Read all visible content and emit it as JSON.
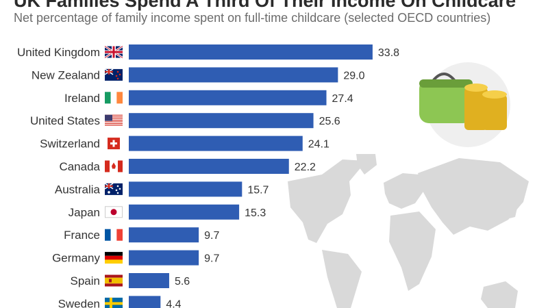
{
  "title": "UK Families Spend A Third Of Their Income On Childcare",
  "subtitle": "Net percentage of family income spent on full-time childcare (selected OECD countries)",
  "colors": {
    "bar": "#2f5db3",
    "map": "#d9d9d9",
    "purse": "#8dc653",
    "coin": "#f2c230"
  },
  "decorations": {
    "purse_icon": "purse-with-coins-icon",
    "map": "world-map-illustration"
  },
  "chart_data": {
    "type": "bar",
    "orientation": "horizontal",
    "categories": [
      "United Kingdom",
      "New Zealand",
      "Ireland",
      "United States",
      "Switzerland",
      "Canada",
      "Australia",
      "Japan",
      "France",
      "Germany",
      "Spain",
      "Sweden"
    ],
    "flags": [
      "gb-flag-icon",
      "nz-flag-icon",
      "ie-flag-icon",
      "us-flag-icon",
      "ch-flag-icon",
      "ca-flag-icon",
      "au-flag-icon",
      "jp-flag-icon",
      "fr-flag-icon",
      "de-flag-icon",
      "es-flag-icon",
      "se-flag-icon"
    ],
    "values": [
      33.8,
      29.0,
      27.4,
      25.6,
      24.1,
      22.2,
      15.7,
      15.3,
      9.7,
      9.7,
      5.6,
      4.4
    ],
    "value_labels": [
      "33.8",
      "29.0",
      "27.4",
      "25.6",
      "24.1",
      "22.2",
      "15.7",
      "15.3",
      "9.7",
      "9.7",
      "5.6",
      "4.4"
    ],
    "xlim": [
      0,
      34
    ],
    "grid": false,
    "axes_visible": false
  }
}
